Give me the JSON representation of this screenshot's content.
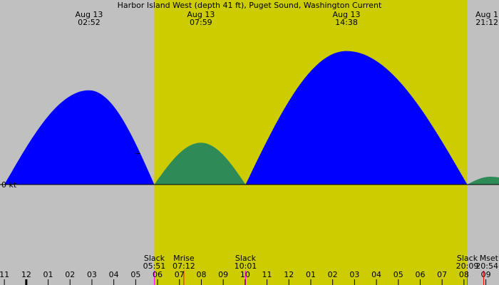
{
  "chart_data": {
    "type": "area",
    "title": "Harbor Island West (depth 41 ft), Puget Sound, Washington Current",
    "ylabel": "0 kt",
    "colors": {
      "night": "#c0c0c0",
      "day": "#cccc00",
      "flood": "#0000ff",
      "ebb": "#2e8b57"
    },
    "daylight": {
      "start": "05:51",
      "end": "20:09"
    },
    "peaks": [
      {
        "date": "Aug 13",
        "time": "02:52",
        "hour": 2.87,
        "speed": 1.2
      },
      {
        "date": "Aug 13",
        "time": "07:59",
        "hour": 7.98,
        "speed": -0.8
      },
      {
        "date": "Aug 13",
        "time": "14:38",
        "hour": 14.63,
        "speed": 1.7
      },
      {
        "date": "Aug 1",
        "time": "21:12",
        "hour": 21.2,
        "speed": -0.15
      }
    ],
    "slacks": [
      {
        "hour": -1.0,
        "speed": 0
      },
      {
        "hour": 5.85,
        "speed": 0
      },
      {
        "hour": 10.02,
        "speed": 0
      },
      {
        "hour": 20.15,
        "speed": 0
      },
      {
        "hour": 22.6,
        "speed": 0
      }
    ],
    "events": [
      {
        "label": "Slack",
        "time": "05:51",
        "hour": 5.85
      },
      {
        "label": "Mrise",
        "time": "07:12",
        "hour": 7.2
      },
      {
        "label": "Slack",
        "time": "10:01",
        "hour": 10.02
      },
      {
        "label": "Slack",
        "time": "20:09",
        "hour": 20.15
      },
      {
        "label": "Mset",
        "time": "20:54",
        "hour": 20.9
      }
    ],
    "x_ticks": [
      {
        "label": "11",
        "hour": -1
      },
      {
        "label": "12",
        "hour": 0
      },
      {
        "label": "01",
        "hour": 1
      },
      {
        "label": "02",
        "hour": 2
      },
      {
        "label": "03",
        "hour": 3
      },
      {
        "label": "04",
        "hour": 4
      },
      {
        "label": "05",
        "hour": 5
      },
      {
        "label": "06",
        "hour": 6
      },
      {
        "label": "07",
        "hour": 7
      },
      {
        "label": "08",
        "hour": 8
      },
      {
        "label": "09",
        "hour": 9
      },
      {
        "label": "10",
        "hour": 10
      },
      {
        "label": "11",
        "hour": 11
      },
      {
        "label": "12",
        "hour": 12
      },
      {
        "label": "01",
        "hour": 13
      },
      {
        "label": "02",
        "hour": 14
      },
      {
        "label": "03",
        "hour": 15
      },
      {
        "label": "04",
        "hour": 16
      },
      {
        "label": "05",
        "hour": 17
      },
      {
        "label": "06",
        "hour": 18
      },
      {
        "label": "07",
        "hour": 19
      },
      {
        "label": "08",
        "hour": 20
      },
      {
        "label": "09",
        "hour": 21
      }
    ],
    "xlim": [
      -1.2,
      21.6
    ],
    "ylim": [
      -1.2,
      1.95
    ],
    "marker": {
      "symbol": "+",
      "hour": 5.1,
      "speed": 0.4
    }
  }
}
